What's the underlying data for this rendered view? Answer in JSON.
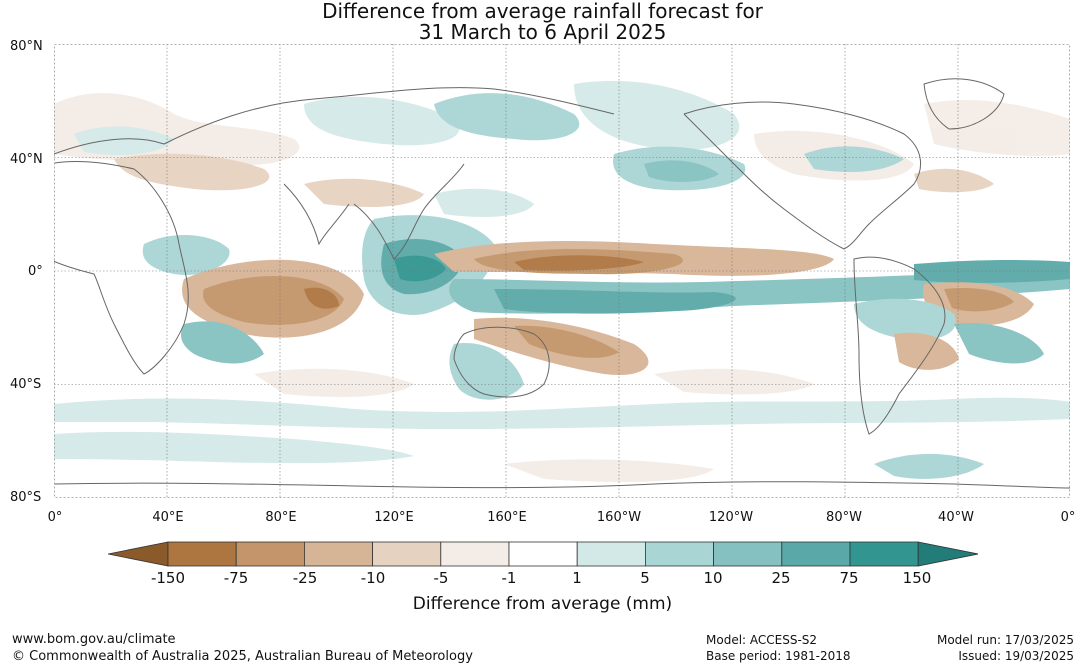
{
  "title": {
    "line1": "Difference from average rainfall forecast for",
    "line2": "31 March to 6 April 2025"
  },
  "axes": {
    "lat_labels": [
      "80°N",
      "40°N",
      "0°",
      "40°S",
      "80°S"
    ],
    "lon_labels": [
      "0°",
      "40°E",
      "80°E",
      "120°E",
      "160°E",
      "160°W",
      "120°W",
      "80°W",
      "40°W",
      "0°"
    ]
  },
  "colorbar": {
    "title": "Difference from average (mm)",
    "ticks": [
      "-150",
      "-75",
      "-25",
      "-10",
      "-5",
      "-1",
      "1",
      "5",
      "10",
      "25",
      "75",
      "150"
    ],
    "colors": [
      "#8b5a2b",
      "#ad7640",
      "#c4956a",
      "#d6b496",
      "#e6d2c0",
      "#f4ece6",
      "#ffffff",
      "#d3e9e8",
      "#a9d5d4",
      "#84c1c0",
      "#5aa9a8",
      "#32958f",
      "#227c78"
    ]
  },
  "footer": {
    "url": "www.bom.gov.au/climate",
    "copyright": "© Commonwealth of Australia 2025, Australian Bureau of Meteorology",
    "model": "Model: ACCESS-S2",
    "base_period": "Base period: 1981-2018",
    "model_run": "Model run: 17/03/2025",
    "issued": "Issued: 19/03/2025"
  }
}
